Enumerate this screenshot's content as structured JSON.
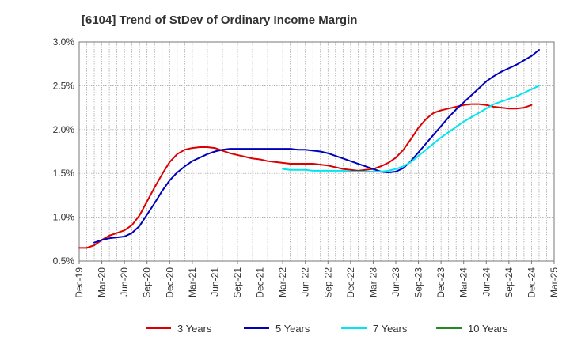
{
  "chart_data": {
    "type": "line",
    "title": "[6104]  Trend of StDev of Ordinary Income Margin",
    "xlabel": "",
    "ylabel": "",
    "x": [
      "Dec-19",
      "Mar-20",
      "Jun-20",
      "Sep-20",
      "Dec-20",
      "Mar-21",
      "Jun-21",
      "Sep-21",
      "Dec-21",
      "Mar-22",
      "Jun-22",
      "Sep-22",
      "Dec-22",
      "Mar-23",
      "Jun-23",
      "Sep-23",
      "Dec-23",
      "Mar-24",
      "Jun-24",
      "Sep-24",
      "Dec-24",
      "Mar-25"
    ],
    "ylim": [
      0.5,
      3.0
    ],
    "y_ticks": [
      "0.5%",
      "1.0%",
      "1.5%",
      "2.0%",
      "2.5%",
      "3.0%"
    ],
    "y_tick_values": [
      0.5,
      1.0,
      1.5,
      2.0,
      2.5,
      3.0
    ],
    "grid": true,
    "legend_position": "bottom",
    "series": [
      {
        "name": "3 Years",
        "color": "#dd0000",
        "points": [
          [
            "Dec-19",
            0.65
          ],
          [
            "Jan-20",
            0.65
          ],
          [
            "Feb-20",
            0.68
          ],
          [
            "Mar-20",
            0.74
          ],
          [
            "Apr-20",
            0.79
          ],
          [
            "May-20",
            0.82
          ],
          [
            "Jun-20",
            0.85
          ],
          [
            "Jul-20",
            0.91
          ],
          [
            "Aug-20",
            1.02
          ],
          [
            "Sep-20",
            1.18
          ],
          [
            "Oct-20",
            1.34
          ],
          [
            "Nov-20",
            1.49
          ],
          [
            "Dec-20",
            1.63
          ],
          [
            "Jan-21",
            1.72
          ],
          [
            "Feb-21",
            1.77
          ],
          [
            "Mar-21",
            1.79
          ],
          [
            "Apr-21",
            1.8
          ],
          [
            "May-21",
            1.8
          ],
          [
            "Jun-21",
            1.79
          ],
          [
            "Jul-21",
            1.76
          ],
          [
            "Aug-21",
            1.73
          ],
          [
            "Sep-21",
            1.71
          ],
          [
            "Oct-21",
            1.69
          ],
          [
            "Nov-21",
            1.67
          ],
          [
            "Dec-21",
            1.66
          ],
          [
            "Jan-22",
            1.64
          ],
          [
            "Feb-22",
            1.63
          ],
          [
            "Mar-22",
            1.62
          ],
          [
            "Apr-22",
            1.61
          ],
          [
            "May-22",
            1.61
          ],
          [
            "Jun-22",
            1.61
          ],
          [
            "Jul-22",
            1.61
          ],
          [
            "Aug-22",
            1.6
          ],
          [
            "Sep-22",
            1.59
          ],
          [
            "Oct-22",
            1.57
          ],
          [
            "Nov-22",
            1.55
          ],
          [
            "Dec-22",
            1.54
          ],
          [
            "Jan-23",
            1.53
          ],
          [
            "Feb-23",
            1.54
          ],
          [
            "Mar-23",
            1.55
          ],
          [
            "Apr-23",
            1.58
          ],
          [
            "May-23",
            1.62
          ],
          [
            "Jun-23",
            1.68
          ],
          [
            "Jul-23",
            1.77
          ],
          [
            "Aug-23",
            1.89
          ],
          [
            "Sep-23",
            2.02
          ],
          [
            "Oct-23",
            2.12
          ],
          [
            "Nov-23",
            2.19
          ],
          [
            "Dec-23",
            2.22
          ],
          [
            "Jan-24",
            2.24
          ],
          [
            "Feb-24",
            2.26
          ],
          [
            "Mar-24",
            2.28
          ],
          [
            "Apr-24",
            2.29
          ],
          [
            "May-24",
            2.29
          ],
          [
            "Jun-24",
            2.28
          ],
          [
            "Jul-24",
            2.26
          ],
          [
            "Aug-24",
            2.25
          ],
          [
            "Sep-24",
            2.24
          ],
          [
            "Oct-24",
            2.24
          ],
          [
            "Nov-24",
            2.25
          ],
          [
            "Dec-24",
            2.28
          ]
        ]
      },
      {
        "name": "5 Years",
        "color": "#0000bb",
        "points": [
          [
            "Feb-20",
            0.71
          ],
          [
            "Mar-20",
            0.74
          ],
          [
            "Apr-20",
            0.76
          ],
          [
            "May-20",
            0.77
          ],
          [
            "Jun-20",
            0.78
          ],
          [
            "Jul-20",
            0.82
          ],
          [
            "Aug-20",
            0.9
          ],
          [
            "Sep-20",
            1.03
          ],
          [
            "Oct-20",
            1.16
          ],
          [
            "Nov-20",
            1.3
          ],
          [
            "Dec-20",
            1.42
          ],
          [
            "Jan-21",
            1.51
          ],
          [
            "Feb-21",
            1.58
          ],
          [
            "Mar-21",
            1.64
          ],
          [
            "Apr-21",
            1.68
          ],
          [
            "May-21",
            1.72
          ],
          [
            "Jun-21",
            1.75
          ],
          [
            "Jul-21",
            1.77
          ],
          [
            "Aug-21",
            1.78
          ],
          [
            "Sep-21",
            1.78
          ],
          [
            "Oct-21",
            1.78
          ],
          [
            "Nov-21",
            1.78
          ],
          [
            "Dec-21",
            1.78
          ],
          [
            "Jan-22",
            1.78
          ],
          [
            "Feb-22",
            1.78
          ],
          [
            "Mar-22",
            1.78
          ],
          [
            "Apr-22",
            1.78
          ],
          [
            "May-22",
            1.77
          ],
          [
            "Jun-22",
            1.77
          ],
          [
            "Jul-22",
            1.76
          ],
          [
            "Aug-22",
            1.75
          ],
          [
            "Sep-22",
            1.73
          ],
          [
            "Oct-22",
            1.7
          ],
          [
            "Nov-22",
            1.67
          ],
          [
            "Dec-22",
            1.64
          ],
          [
            "Jan-23",
            1.61
          ],
          [
            "Feb-23",
            1.58
          ],
          [
            "Mar-23",
            1.55
          ],
          [
            "Apr-23",
            1.52
          ],
          [
            "May-23",
            1.51
          ],
          [
            "Jun-23",
            1.52
          ],
          [
            "Jul-23",
            1.56
          ],
          [
            "Aug-23",
            1.64
          ],
          [
            "Sep-23",
            1.74
          ],
          [
            "Oct-23",
            1.84
          ],
          [
            "Nov-23",
            1.94
          ],
          [
            "Dec-23",
            2.04
          ],
          [
            "Jan-24",
            2.14
          ],
          [
            "Feb-24",
            2.23
          ],
          [
            "Mar-24",
            2.31
          ],
          [
            "Apr-24",
            2.39
          ],
          [
            "May-24",
            2.47
          ],
          [
            "Jun-24",
            2.55
          ],
          [
            "Jul-24",
            2.61
          ],
          [
            "Aug-24",
            2.66
          ],
          [
            "Sep-24",
            2.7
          ],
          [
            "Oct-24",
            2.74
          ],
          [
            "Nov-24",
            2.79
          ],
          [
            "Dec-24",
            2.84
          ],
          [
            "Jan-25",
            2.91
          ]
        ]
      },
      {
        "name": "7 Years",
        "color": "#00e5ee",
        "points": [
          [
            "Mar-22",
            1.55
          ],
          [
            "Apr-22",
            1.54
          ],
          [
            "May-22",
            1.54
          ],
          [
            "Jun-22",
            1.54
          ],
          [
            "Jul-22",
            1.53
          ],
          [
            "Aug-22",
            1.53
          ],
          [
            "Sep-22",
            1.53
          ],
          [
            "Oct-22",
            1.53
          ],
          [
            "Nov-22",
            1.53
          ],
          [
            "Dec-22",
            1.52
          ],
          [
            "Jan-23",
            1.52
          ],
          [
            "Feb-23",
            1.52
          ],
          [
            "Mar-23",
            1.52
          ],
          [
            "Apr-23",
            1.52
          ],
          [
            "May-23",
            1.53
          ],
          [
            "Jun-23",
            1.55
          ],
          [
            "Jul-23",
            1.58
          ],
          [
            "Aug-23",
            1.63
          ],
          [
            "Sep-23",
            1.7
          ],
          [
            "Oct-23",
            1.77
          ],
          [
            "Nov-23",
            1.84
          ],
          [
            "Dec-23",
            1.91
          ],
          [
            "Jan-24",
            1.97
          ],
          [
            "Feb-24",
            2.03
          ],
          [
            "Mar-24",
            2.09
          ],
          [
            "Apr-24",
            2.14
          ],
          [
            "May-24",
            2.19
          ],
          [
            "Jun-24",
            2.24
          ],
          [
            "Jul-24",
            2.29
          ],
          [
            "Aug-24",
            2.32
          ],
          [
            "Sep-24",
            2.35
          ],
          [
            "Oct-24",
            2.38
          ],
          [
            "Nov-24",
            2.42
          ],
          [
            "Dec-24",
            2.46
          ],
          [
            "Jan-25",
            2.5
          ]
        ]
      },
      {
        "name": "10 Years",
        "color": "#228b22",
        "points": []
      }
    ]
  }
}
